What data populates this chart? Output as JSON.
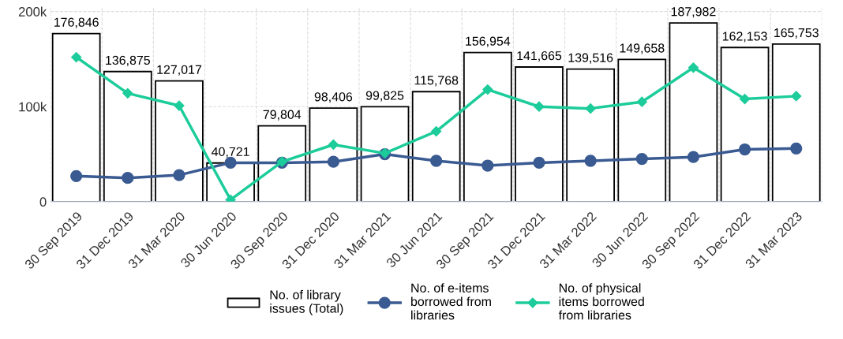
{
  "chart_data": {
    "type": "bar",
    "categories": [
      "30 Sep 2019",
      "31 Dec 2019",
      "31 Mar 2020",
      "30 Jun 2020",
      "30 Sep 2020",
      "31 Dec 2020",
      "31 Mar 2021",
      "30 Jun 2021",
      "30 Sep 2021",
      "31 Dec 2021",
      "31 Mar 2022",
      "30 Jun 2022",
      "30 Sep 2022",
      "31 Dec 2022",
      "31 Mar 2023"
    ],
    "series": [
      {
        "name": "No. of library issues (Total)",
        "color": "#ffffff",
        "values": [
          176846,
          136875,
          127017,
          40721,
          79804,
          98406,
          99825,
          115768,
          156954,
          141665,
          139516,
          149658,
          187982,
          162153,
          165753
        ],
        "value_labels": [
          "176,846",
          "136,875",
          "127,017",
          "40,721",
          "79,804",
          "98,406",
          "99,825",
          "115,768",
          "156,954",
          "141,665",
          "139,516",
          "149,658",
          "187,982",
          "162,153",
          "165,753"
        ]
      },
      {
        "name": "No. of e-items borrowed from libraries",
        "type": "line",
        "marker": "circle",
        "color": "#3a5a92",
        "values": [
          27000,
          25000,
          28000,
          41000,
          41000,
          42000,
          50000,
          43000,
          38000,
          41000,
          43000,
          45000,
          47000,
          55000,
          56000
        ]
      },
      {
        "name": "No. of physical items borrowed from libraries",
        "type": "line",
        "marker": "diamond",
        "color": "#1ccc9a",
        "values": [
          152000,
          114000,
          101000,
          2000,
          42000,
          60000,
          51000,
          74000,
          118000,
          100000,
          98000,
          105000,
          141000,
          108000,
          111000
        ]
      }
    ],
    "ylim": [
      0,
      205000
    ],
    "yticks": [
      0,
      {
        "value": 100000,
        "label": "100k"
      },
      {
        "value": 200000,
        "label": "200k"
      }
    ],
    "grid": true,
    "legend": "bottom"
  }
}
